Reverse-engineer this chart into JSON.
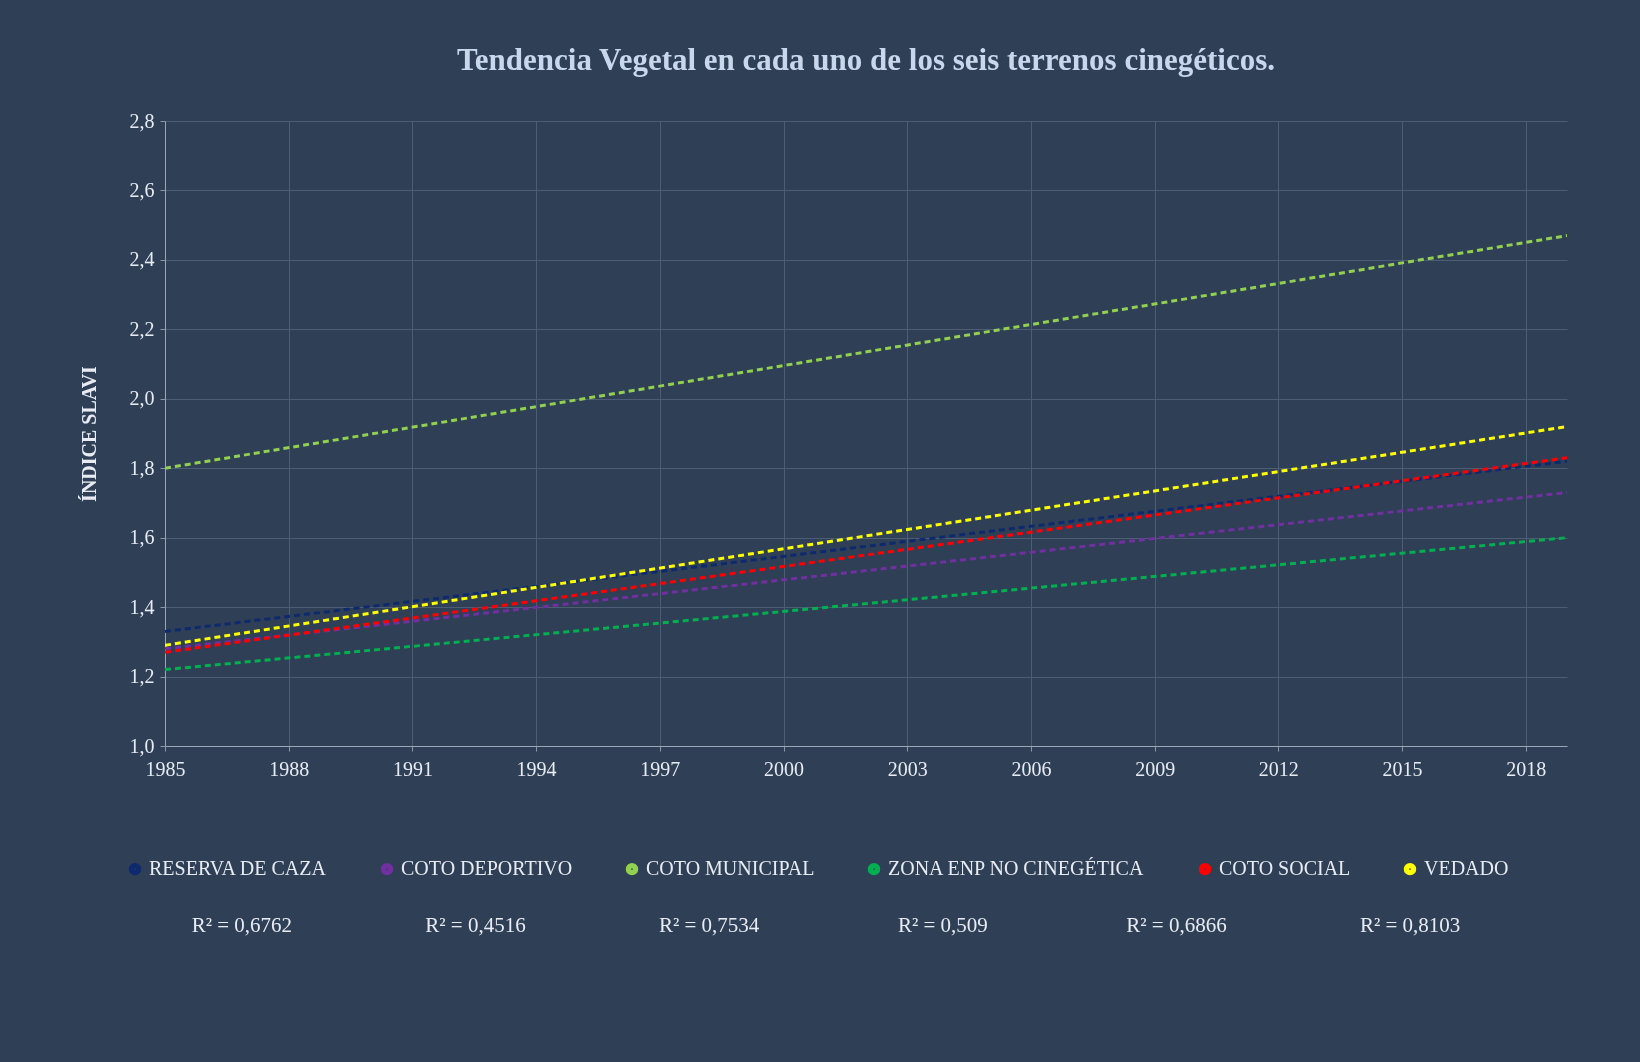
{
  "chart_data": {
    "type": "line",
    "title": "Tendencia Vegetal en cada uno de los seis terrenos cinegéticos.",
    "ylabel": "ÍNDICE SLAVI",
    "x": [
      1985,
      2019
    ],
    "series": [
      {
        "name": "RESERVA DE CAZA",
        "color": "#0e2a6e",
        "values": [
          1.33,
          1.82
        ]
      },
      {
        "name": "COTO DEPORTIVO",
        "color": "#7030a0",
        "values": [
          1.28,
          1.73
        ]
      },
      {
        "name": "COTO MUNICIPAL",
        "color": "#92d050",
        "values": [
          1.8,
          2.47
        ]
      },
      {
        "name": "ZONA ENP NO CINEGÉTICA",
        "color": "#00b050",
        "values": [
          1.22,
          1.6
        ]
      },
      {
        "name": "COTO SOCIAL",
        "color": "#ff0000",
        "values": [
          1.27,
          1.83
        ]
      },
      {
        "name": "VEDADO",
        "color": "#ffff00",
        "values": [
          1.29,
          1.92
        ]
      }
    ],
    "xlim": [
      1985,
      2019
    ],
    "xticks": [
      1985,
      1988,
      1991,
      1994,
      1997,
      2000,
      2003,
      2006,
      2009,
      2012,
      2015,
      2018
    ],
    "ylim": [
      1.0,
      2.8
    ],
    "yticks": [
      {
        "value": 1.0,
        "label": "1,0"
      },
      {
        "value": 1.2,
        "label": "1,2"
      },
      {
        "value": 1.4,
        "label": "1,4"
      },
      {
        "value": 1.6,
        "label": "1,6"
      },
      {
        "value": 1.8,
        "label": "1,8"
      },
      {
        "value": 2.0,
        "label": "2,0"
      },
      {
        "value": 2.2,
        "label": "2,2"
      },
      {
        "value": 2.4,
        "label": "2,4"
      },
      {
        "value": 2.6,
        "label": "2,6"
      },
      {
        "value": 2.8,
        "label": "2,8"
      }
    ],
    "grid": true,
    "legend": "bottom",
    "line_style": "dashed",
    "annotations": [
      "R² = 0,6762",
      "R² = 0,4516",
      "R² = 0,7534",
      "R² = 0,509",
      "R² = 0,6866",
      "R² = 0,8103"
    ]
  }
}
